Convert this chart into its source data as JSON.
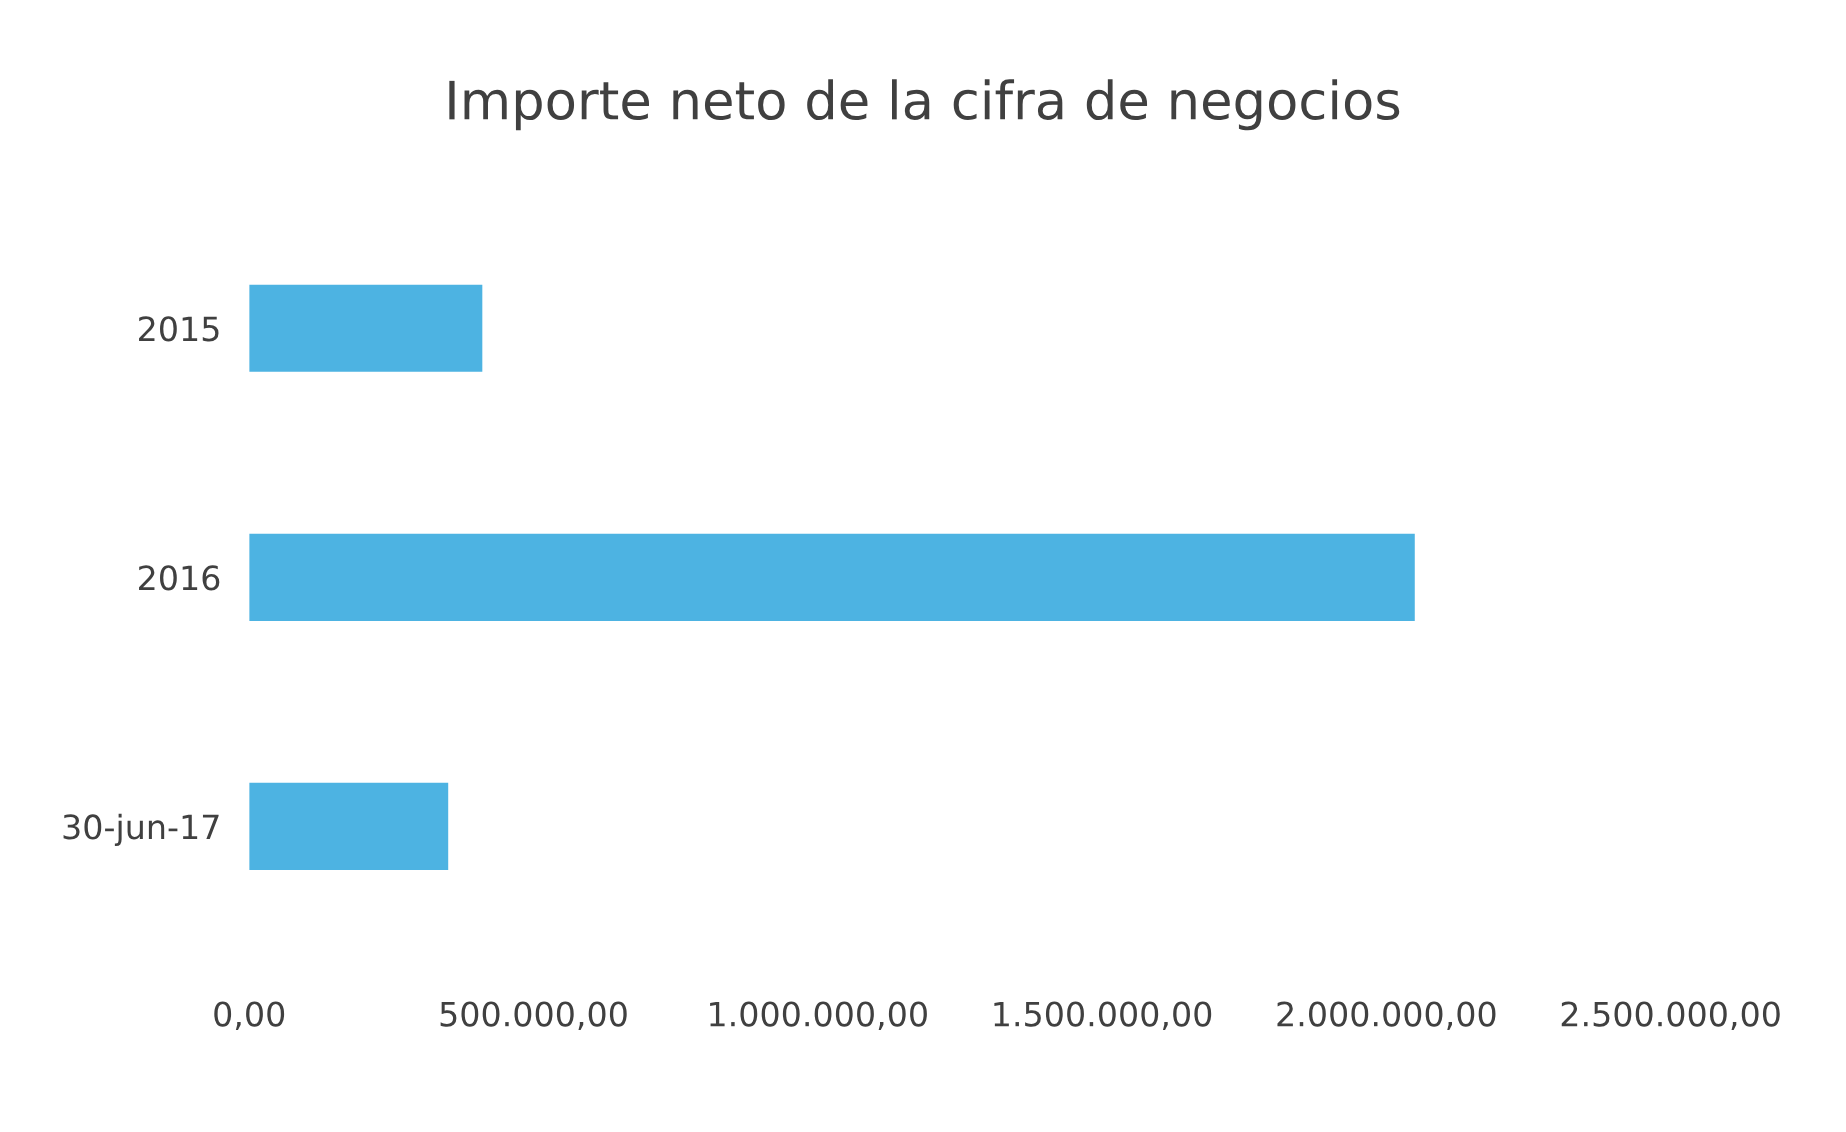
{
  "chart_data": {
    "type": "bar",
    "orientation": "horizontal",
    "title": "Importe neto de la cifra de negocios",
    "categories": [
      "2015",
      "2016",
      "30-jun-17"
    ],
    "values": [
      410000,
      2050000,
      350000
    ],
    "color": "#4db3e2",
    "xlim": [
      0,
      2500000
    ],
    "xticks": [
      {
        "value": 0,
        "label": "0,00"
      },
      {
        "value": 500000,
        "label": "500.000,00"
      },
      {
        "value": 1000000,
        "label": "1.000.000,00"
      },
      {
        "value": 1500000,
        "label": "1.500.000,00"
      },
      {
        "value": 2000000,
        "label": "2.000.000,00"
      },
      {
        "value": 2500000,
        "label": "2.500.000,00"
      }
    ],
    "grid": false,
    "legend": false
  }
}
